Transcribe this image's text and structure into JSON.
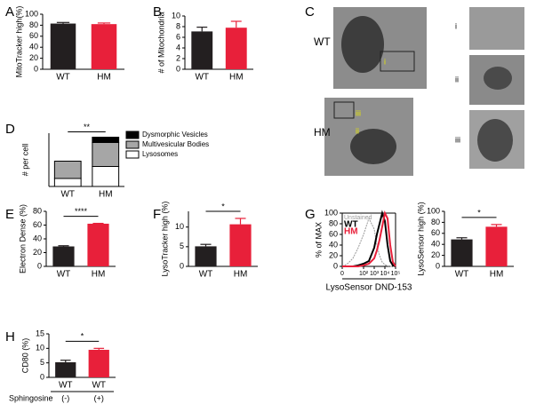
{
  "chart_data": [
    {
      "type": "bar",
      "panel": "A",
      "ylabel": "MitoTracker high(%)",
      "categories": [
        "WT",
        "HM"
      ],
      "values": [
        83,
        82
      ],
      "errors": [
        2,
        2
      ],
      "colors": [
        "#231f20",
        "#e8203a"
      ],
      "ylim": [
        0,
        100
      ],
      "yticks": [
        0,
        20,
        40,
        60,
        80,
        100
      ]
    },
    {
      "type": "bar",
      "panel": "B",
      "ylabel": "# of Mitochondria",
      "categories": [
        "WT",
        "HM"
      ],
      "values": [
        7.1,
        7.8
      ],
      "errors": [
        0.8,
        1.2
      ],
      "colors": [
        "#231f20",
        "#e8203a"
      ],
      "ylim": [
        0,
        10
      ],
      "yticks": [
        0,
        2,
        4,
        6,
        8,
        10
      ]
    },
    {
      "type": "stacked",
      "panel": "D",
      "ylabel": "# per cell",
      "annotation": "**",
      "categories": [
        "WT",
        "HM"
      ],
      "ylim": [
        0,
        20
      ],
      "series": [
        {
          "name": "Lysosomes",
          "color": "#ffffff",
          "values": [
            3,
            7.5
          ]
        },
        {
          "name": "Multivesicular Bodies",
          "color": "#a6a6a6",
          "values": [
            6.5,
            9
          ]
        },
        {
          "name": "Dysmorphic Vesicles",
          "color": "#000000",
          "values": [
            0,
            2
          ]
        }
      ]
    },
    {
      "type": "bar",
      "panel": "E",
      "ylabel": "Electron Dense (%)",
      "annotation": "****",
      "categories": [
        "WT",
        "HM"
      ],
      "values": [
        29,
        62
      ],
      "errors": [
        1,
        0.5
      ],
      "colors": [
        "#231f20",
        "#e8203a"
      ],
      "ylim": [
        0,
        80
      ],
      "yticks": [
        0,
        20,
        40,
        60,
        80
      ]
    },
    {
      "type": "bar",
      "panel": "F",
      "ylabel": "LysoTracker high (%)",
      "annotation": "*",
      "categories": [
        "WT",
        "HM"
      ],
      "values": [
        5.1,
        10.7
      ],
      "errors": [
        0.5,
        1.5
      ],
      "colors": [
        "#231f20",
        "#e8203a"
      ],
      "ylim": [
        0,
        14
      ],
      "yticks": [
        0,
        5,
        10
      ]
    },
    {
      "type": "line",
      "panel": "G",
      "ylabel": "% of MAX",
      "xlabel": "LysoSensor DND-153",
      "xlim": [
        0,
        5
      ],
      "ylim": [
        0,
        100
      ],
      "yticks": [
        0,
        20,
        40,
        60,
        80,
        100
      ],
      "xticks": [
        0,
        {
          "value": 2,
          "label": "10²"
        },
        {
          "value": 3,
          "label": "10³"
        },
        {
          "value": 4,
          "label": "10⁴"
        },
        {
          "value": 5,
          "label": "10⁵"
        }
      ],
      "x": [
        0,
        0.5,
        1,
        1.5,
        2,
        2.5,
        3,
        3.25,
        3.5,
        3.75,
        4,
        4.25,
        4.5,
        4.75,
        5
      ],
      "series": [
        {
          "name": "Unstained",
          "color": "#9a9a9a",
          "values": [
            0,
            5,
            15,
            35,
            60,
            90,
            70,
            40,
            20,
            8,
            3,
            1,
            0,
            0,
            0
          ]
        },
        {
          "name": "WT",
          "color": "#000000",
          "values": [
            0,
            0,
            0,
            2,
            5,
            10,
            35,
            60,
            80,
            100,
            85,
            40,
            10,
            2,
            0
          ]
        },
        {
          "name": "HM",
          "color": "#e8203a",
          "values": [
            0,
            0,
            0,
            0,
            2,
            5,
            15,
            30,
            50,
            75,
            100,
            90,
            40,
            8,
            0
          ]
        }
      ]
    },
    {
      "type": "bar",
      "ylabel": "LysoSensor high (%)",
      "annotation": "*",
      "categories": [
        "WT",
        "HM"
      ],
      "values": [
        49,
        72
      ],
      "errors": [
        3,
        4
      ],
      "colors": [
        "#231f20",
        "#e8203a"
      ],
      "ylim": [
        0,
        100
      ],
      "yticks": [
        0,
        20,
        40,
        60,
        80,
        100
      ]
    },
    {
      "type": "bar",
      "panel": "H",
      "ylabel": "CD80 (%)",
      "annotation": "*",
      "categories": [
        "WT",
        "WT"
      ],
      "values": [
        5.2,
        9.5
      ],
      "errors": [
        0.7,
        0.5
      ],
      "colors": [
        "#231f20",
        "#e8203a"
      ],
      "ylim": [
        0,
        15
      ],
      "yticks": [
        0,
        5,
        10,
        15
      ],
      "group_label": "Sphingosine",
      "group_values": [
        "(-)",
        "(+)"
      ]
    }
  ],
  "micrographs": {
    "panel": "C",
    "labels": [
      "WT",
      "HM"
    ],
    "insets": [
      "i",
      "ii",
      "iii"
    ]
  }
}
